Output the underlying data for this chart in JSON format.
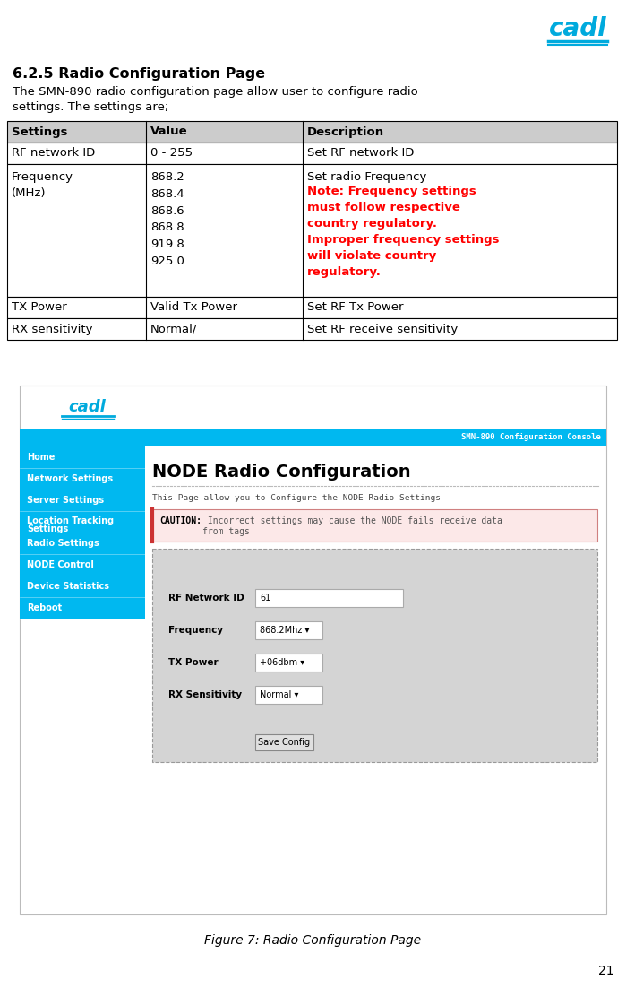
{
  "bg_color": "#ffffff",
  "page_number": "21",
  "logo_color": "#00aadd",
  "section_title": "6.2.5 Radio Configuration Page",
  "section_desc": "The SMN-890 radio configuration page allow user to configure radio\nsettings. The settings are;",
  "table_header_bg": "#cccccc",
  "table_header_cols": [
    "Settings",
    "Value",
    "Description"
  ],
  "figure_caption": "Figure 7: Radio Configuration Page",
  "header_bar_color": "#00b8f0",
  "header_text": "SMN-890 Configuration Console",
  "nav_bg": "#00b8f0",
  "nav_items": [
    "Home",
    "Network Settings",
    "Server Settings",
    "Location Tracking\nSettings",
    "Radio Settings",
    "NODE Control",
    "Device Statistics",
    "Reboot"
  ],
  "main_title": "NODE Radio Configuration",
  "page_desc_mono": "This Page allow you to Configure the NODE Radio Settings",
  "caution_bg": "#fce8e8",
  "caution_border": "#d08080",
  "caution_bold": "CAUTION:",
  "caution_text": " Incorrect settings may cause the NODE fails receive data\nfrom tags",
  "form_bg": "#d4d4d4",
  "form_fields": [
    {
      "label": "RF Network ID",
      "value": "61",
      "type": "input"
    },
    {
      "label": "Frequency",
      "value": "868.2Mhz",
      "type": "dropdown"
    },
    {
      "label": "TX Power",
      "value": "+06dbm",
      "type": "dropdown"
    },
    {
      "label": "RX Sensitivity",
      "value": "Normal",
      "type": "dropdown"
    }
  ],
  "save_button": "Save Config"
}
